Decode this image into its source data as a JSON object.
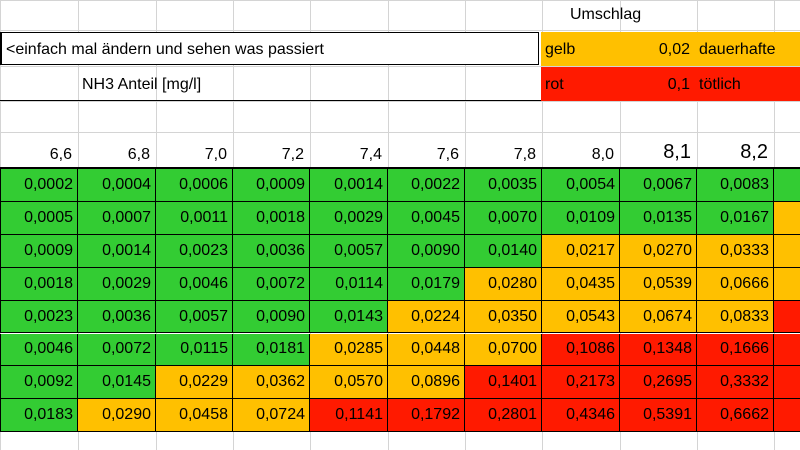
{
  "header": {
    "title": "Umschlag",
    "note": "<einfach mal ändern und sehen was passiert",
    "label": "NH3 Anteil [mg/l]"
  },
  "legend": [
    {
      "label": "gelb",
      "threshold": "0,02",
      "text": "dauerhafte",
      "color": "#ffc000"
    },
    {
      "label": "rot",
      "threshold": "0,1",
      "text": "tötlich",
      "color": "#ff1a00"
    }
  ],
  "base_color": "#33cc33",
  "table": {
    "header": [
      "6,6",
      "6,8",
      "7,0",
      "7,2",
      "7,4",
      "7,6",
      "7,8",
      "8,0",
      "8,1",
      "8,2"
    ],
    "rows": [
      [
        "0,0002",
        "0,0004",
        "0,0006",
        "0,0009",
        "0,0014",
        "0,0022",
        "0,0035",
        "0,0054",
        "0,0067",
        "0,0083"
      ],
      [
        "0,0005",
        "0,0007",
        "0,0011",
        "0,0018",
        "0,0029",
        "0,0045",
        "0,0070",
        "0,0109",
        "0,0135",
        "0,0167"
      ],
      [
        "0,0009",
        "0,0014",
        "0,0023",
        "0,0036",
        "0,0057",
        "0,0090",
        "0,0140",
        "0,0217",
        "0,0270",
        "0,0333"
      ],
      [
        "0,0018",
        "0,0029",
        "0,0046",
        "0,0072",
        "0,0114",
        "0,0179",
        "0,0280",
        "0,0435",
        "0,0539",
        "0,0666"
      ],
      [
        "0,0023",
        "0,0036",
        "0,0057",
        "0,0090",
        "0,0143",
        "0,0224",
        "0,0350",
        "0,0543",
        "0,0674",
        "0,0833"
      ],
      [
        "0,0046",
        "0,0072",
        "0,0115",
        "0,0181",
        "0,0285",
        "0,0448",
        "0,0700",
        "0,1086",
        "0,1348",
        "0,1666"
      ],
      [
        "0,0092",
        "0,0145",
        "0,0229",
        "0,0362",
        "0,0570",
        "0,0896",
        "0,1401",
        "0,2173",
        "0,2695",
        "0,3332"
      ],
      [
        "0,0183",
        "0,0290",
        "0,0458",
        "0,0724",
        "0,1141",
        "0,1792",
        "0,2801",
        "0,4346",
        "0,5391",
        "0,6662"
      ]
    ]
  }
}
